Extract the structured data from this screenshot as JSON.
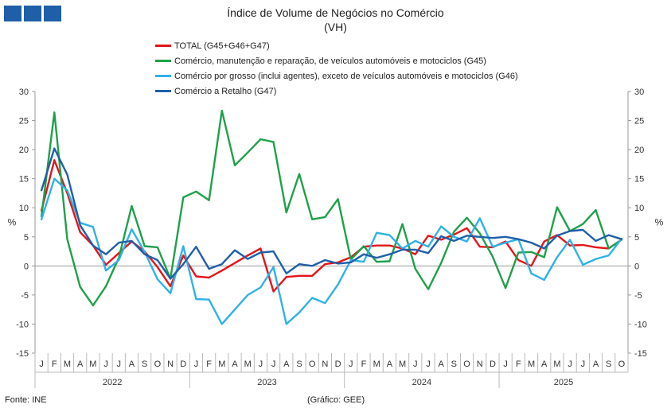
{
  "header": {
    "logo_icon": "ine-logo-blocks",
    "title": "Índice de Volume de Negócios no Comércio",
    "subtitle": "(VH)"
  },
  "footer": {
    "source": "Fonte: INE",
    "credit": "(Gráfico: GEE)"
  },
  "chart_data": {
    "type": "line",
    "title": "Índice de Volume de Negócios no Comércio",
    "subtitle": "(VH)",
    "xlabel": "",
    "ylabel": "%",
    "ylabel_right": "%",
    "ylim": [
      -15,
      30
    ],
    "yticks": [
      -15,
      -10,
      -5,
      0,
      5,
      10,
      15,
      20,
      25,
      30
    ],
    "grid": false,
    "legend_position": "top",
    "month_labels": [
      "J",
      "F",
      "M",
      "A",
      "M",
      "J",
      "J",
      "A",
      "S",
      "O",
      "N",
      "D",
      "J",
      "F",
      "M",
      "A",
      "M",
      "J",
      "J",
      "A",
      "S",
      "O",
      "N",
      "D",
      "J",
      "F",
      "M",
      "A",
      "M",
      "J",
      "J",
      "A",
      "S",
      "O",
      "N",
      "D",
      "J",
      "F",
      "M",
      "A",
      "M",
      "J",
      "J",
      "A",
      "S",
      "O"
    ],
    "years": [
      "2022",
      "2023",
      "2024",
      "2025"
    ],
    "series": [
      {
        "name": "TOTAL (G45+G46+G47)",
        "color": "#e3151a",
        "values": [
          9.5,
          18.2,
          12.5,
          5.8,
          3.5,
          0.2,
          2.2,
          4.2,
          2.5,
          -0.2,
          -3.5,
          1.8,
          -1.8,
          -2.0,
          -0.8,
          0.5,
          1.8,
          3.0,
          -4.4,
          -1.9,
          -1.7,
          -1.7,
          0.3,
          0.6,
          1.5,
          3.3,
          3.5,
          3.5,
          3.0,
          2.0,
          5.2,
          4.5,
          5.4,
          6.5,
          3.3,
          3.2,
          4.2,
          1.0,
          0.0,
          4.2,
          5.3,
          3.5,
          3.6,
          3.2,
          3.0,
          4.5
        ]
      },
      {
        "name": "Comércio, manutenção e reparação, de veículos automóveis e motociclos (G45)",
        "color": "#1fa04a",
        "values": [
          8.5,
          26.4,
          4.6,
          -3.6,
          -6.8,
          -3.5,
          1.4,
          10.3,
          3.4,
          3.2,
          -2.2,
          11.8,
          12.8,
          11.3,
          26.7,
          17.3,
          19.5,
          21.8,
          21.3,
          9.2,
          15.8,
          8.0,
          8.4,
          11.5,
          1.1,
          3.4,
          0.7,
          0.8,
          7.2,
          -0.5,
          -4.0,
          0.5,
          5.9,
          8.3,
          5.6,
          1.6,
          -3.8,
          2.3,
          2.4,
          1.5,
          10.1,
          6.0,
          7.2,
          9.6,
          3.0,
          4.5
        ]
      },
      {
        "name": "Comércio por grosso (inclui agentes), exceto de veículos automóveis e motociclos (G46)",
        "color": "#2eb2e6",
        "values": [
          8.0,
          15.0,
          13.0,
          7.4,
          6.7,
          -0.8,
          1.0,
          6.3,
          2.4,
          -2.3,
          -4.7,
          3.4,
          -5.7,
          -5.8,
          -10.0,
          -7.5,
          -5.0,
          -3.7,
          -0.2,
          -10.0,
          -8.0,
          -5.5,
          -6.4,
          -3.2,
          1.0,
          0.7,
          5.7,
          5.3,
          3.0,
          4.3,
          3.3,
          6.8,
          5.0,
          4.2,
          8.2,
          3.3,
          4.0,
          4.6,
          -1.3,
          -2.4,
          1.5,
          4.5,
          0.2,
          1.2,
          1.8,
          4.7
        ]
      },
      {
        "name": "Comércio a Retalho (G47)",
        "color": "#1f5fa8",
        "values": [
          13.0,
          20.2,
          15.7,
          7.0,
          3.5,
          2.0,
          4.0,
          4.3,
          2.0,
          1.0,
          -2.2,
          0.3,
          3.3,
          -0.5,
          0.3,
          2.7,
          1.2,
          2.3,
          2.5,
          -1.3,
          0.3,
          0.0,
          1.0,
          0.4,
          0.6,
          2.0,
          1.4,
          2.0,
          2.8,
          2.8,
          2.2,
          5.1,
          4.3,
          5.2,
          5.0,
          4.8,
          5.0,
          4.6,
          4.0,
          3.0,
          5.2,
          6.0,
          6.2,
          4.3,
          5.3,
          4.6
        ]
      }
    ]
  }
}
